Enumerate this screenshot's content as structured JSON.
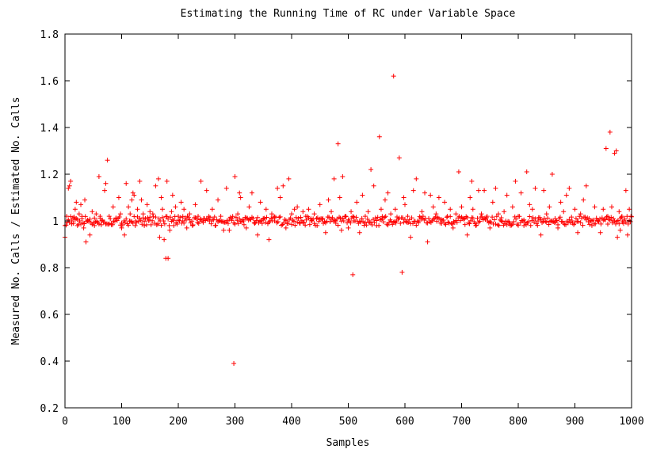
{
  "chart_data": {
    "type": "scatter",
    "title": "Estimating the Running Time of RC under Variable Space",
    "xlabel": "Samples",
    "ylabel": "Measured No. Calls / Estimated No. Calls",
    "xlim": [
      0,
      1000
    ],
    "ylim": [
      0.2,
      1.8
    ],
    "xticks": [
      "0",
      "100",
      "200",
      "300",
      "400",
      "500",
      "600",
      "700",
      "800",
      "900",
      "1000"
    ],
    "yticks": [
      "0.2",
      "0.4",
      "0.6",
      "0.8",
      "1",
      "1.2",
      "1.4",
      "1.6",
      "1.8"
    ],
    "grid": false,
    "marker": "plus",
    "series": [
      {
        "color": "#ff0000",
        "points": [
          [
            0,
            0.93
          ],
          [
            3,
            1.02
          ],
          [
            6,
            1.14
          ],
          [
            8,
            1.15
          ],
          [
            10,
            1.17
          ],
          [
            12,
            1.0
          ],
          [
            15,
            0.99
          ],
          [
            18,
            1.05
          ],
          [
            20,
            1.08
          ],
          [
            22,
            0.98
          ],
          [
            25,
            1.03
          ],
          [
            28,
            1.07
          ],
          [
            30,
            1.01
          ],
          [
            33,
            0.97
          ],
          [
            35,
            1.09
          ],
          [
            37,
            0.91
          ],
          [
            40,
            1.0
          ],
          [
            44,
            0.94
          ],
          [
            48,
            1.04
          ],
          [
            52,
            0.98
          ],
          [
            55,
            1.03
          ],
          [
            60,
            1.19
          ],
          [
            62,
            1.02
          ],
          [
            65,
            1.0
          ],
          [
            70,
            1.13
          ],
          [
            72,
            1.16
          ],
          [
            75,
            1.26
          ],
          [
            78,
            1.02
          ],
          [
            82,
            0.99
          ],
          [
            85,
            1.06
          ],
          [
            90,
            1.01
          ],
          [
            95,
            1.1
          ],
          [
            98,
            1.03
          ],
          [
            100,
            0.97
          ],
          [
            105,
            0.94
          ],
          [
            108,
            1.16
          ],
          [
            112,
            1.06
          ],
          [
            115,
            1.03
          ],
          [
            118,
            1.09
          ],
          [
            120,
            1.12
          ],
          [
            122,
            1.11
          ],
          [
            125,
            1.0
          ],
          [
            128,
            1.05
          ],
          [
            132,
            1.17
          ],
          [
            135,
            1.09
          ],
          [
            138,
            1.03
          ],
          [
            140,
            0.98
          ],
          [
            145,
            1.07
          ],
          [
            148,
            1.0
          ],
          [
            150,
            1.04
          ],
          [
            155,
            1.03
          ],
          [
            160,
            1.15
          ],
          [
            165,
            1.18
          ],
          [
            167,
            0.93
          ],
          [
            170,
            1.1
          ],
          [
            172,
            1.05
          ],
          [
            175,
            0.92
          ],
          [
            178,
            0.84
          ],
          [
            180,
            1.17
          ],
          [
            182,
            0.84
          ],
          [
            185,
            0.96
          ],
          [
            188,
            1.04
          ],
          [
            190,
            1.11
          ],
          [
            192,
            0.98
          ],
          [
            195,
            1.06
          ],
          [
            200,
            1.02
          ],
          [
            205,
            1.08
          ],
          [
            208,
            1.0
          ],
          [
            210,
            1.05
          ],
          [
            215,
            0.97
          ],
          [
            220,
            1.03
          ],
          [
            225,
            0.98
          ],
          [
            230,
            1.07
          ],
          [
            235,
            1.02
          ],
          [
            240,
            1.17
          ],
          [
            245,
            1.01
          ],
          [
            250,
            1.13
          ],
          [
            255,
            1.0
          ],
          [
            260,
            1.05
          ],
          [
            265,
            0.98
          ],
          [
            270,
            1.09
          ],
          [
            275,
            1.02
          ],
          [
            280,
            0.96
          ],
          [
            285,
            1.14
          ],
          [
            290,
            0.96
          ],
          [
            295,
            1.01
          ],
          [
            298,
            0.39
          ],
          [
            300,
            1.19
          ],
          [
            305,
            1.03
          ],
          [
            308,
            1.12
          ],
          [
            310,
            1.1
          ],
          [
            315,
            1.0
          ],
          [
            320,
            0.97
          ],
          [
            325,
            1.06
          ],
          [
            330,
            1.12
          ],
          [
            335,
            0.99
          ],
          [
            340,
            0.94
          ],
          [
            345,
            1.08
          ],
          [
            350,
            1.01
          ],
          [
            355,
            1.05
          ],
          [
            360,
            0.92
          ],
          [
            365,
            1.03
          ],
          [
            370,
            1.0
          ],
          [
            375,
            1.14
          ],
          [
            380,
            1.1
          ],
          [
            385,
            1.15
          ],
          [
            390,
            0.97
          ],
          [
            395,
            1.18
          ],
          [
            400,
            1.03
          ],
          [
            405,
            1.05
          ],
          [
            410,
            1.06
          ],
          [
            415,
            0.99
          ],
          [
            420,
            1.04
          ],
          [
            425,
            1.02
          ],
          [
            430,
            1.05
          ],
          [
            435,
            1.0
          ],
          [
            440,
            1.03
          ],
          [
            445,
            0.98
          ],
          [
            450,
            1.07
          ],
          [
            455,
            1.01
          ],
          [
            460,
            0.95
          ],
          [
            465,
            1.09
          ],
          [
            470,
            1.04
          ],
          [
            475,
            1.18
          ],
          [
            478,
            1.0
          ],
          [
            482,
            1.33
          ],
          [
            485,
            1.1
          ],
          [
            488,
            0.96
          ],
          [
            490,
            1.19
          ],
          [
            495,
            1.02
          ],
          [
            500,
            0.97
          ],
          [
            505,
            1.04
          ],
          [
            508,
            0.77
          ],
          [
            510,
            1.0
          ],
          [
            515,
            1.08
          ],
          [
            520,
            0.95
          ],
          [
            525,
            1.11
          ],
          [
            530,
            1.02
          ],
          [
            535,
            1.04
          ],
          [
            540,
            1.22
          ],
          [
            545,
            1.15
          ],
          [
            550,
            0.98
          ],
          [
            555,
            1.36
          ],
          [
            558,
            1.05
          ],
          [
            560,
            1.01
          ],
          [
            565,
            1.09
          ],
          [
            570,
            1.12
          ],
          [
            575,
            1.03
          ],
          [
            580,
            1.62
          ],
          [
            583,
            1.05
          ],
          [
            585,
            1.0
          ],
          [
            590,
            1.27
          ],
          [
            595,
            0.78
          ],
          [
            598,
            1.1
          ],
          [
            600,
            1.07
          ],
          [
            605,
            1.02
          ],
          [
            610,
            0.93
          ],
          [
            615,
            1.13
          ],
          [
            620,
            1.18
          ],
          [
            625,
            1.0
          ],
          [
            630,
            1.04
          ],
          [
            635,
            1.12
          ],
          [
            640,
            0.91
          ],
          [
            645,
            1.11
          ],
          [
            650,
            1.06
          ],
          [
            655,
            1.03
          ],
          [
            660,
            1.1
          ],
          [
            665,
            0.99
          ],
          [
            670,
            1.08
          ],
          [
            675,
            1.02
          ],
          [
            680,
            1.05
          ],
          [
            685,
            0.97
          ],
          [
            690,
            1.03
          ],
          [
            695,
            1.21
          ],
          [
            700,
            1.06
          ],
          [
            705,
            1.01
          ],
          [
            710,
            0.94
          ],
          [
            715,
            1.1
          ],
          [
            718,
            1.17
          ],
          [
            720,
            1.05
          ],
          [
            725,
            0.98
          ],
          [
            730,
            1.13
          ],
          [
            735,
            1.03
          ],
          [
            740,
            1.13
          ],
          [
            745,
            1.02
          ],
          [
            750,
            0.97
          ],
          [
            755,
            1.08
          ],
          [
            760,
            1.14
          ],
          [
            765,
            1.03
          ],
          [
            770,
            1.0
          ],
          [
            775,
            1.04
          ],
          [
            780,
            1.11
          ],
          [
            785,
            0.99
          ],
          [
            790,
            1.06
          ],
          [
            795,
            1.17
          ],
          [
            800,
            1.02
          ],
          [
            805,
            1.12
          ],
          [
            810,
            0.98
          ],
          [
            815,
            1.21
          ],
          [
            820,
            1.07
          ],
          [
            825,
            1.05
          ],
          [
            830,
            1.14
          ],
          [
            835,
            1.0
          ],
          [
            840,
            0.94
          ],
          [
            845,
            1.13
          ],
          [
            850,
            1.03
          ],
          [
            855,
            1.06
          ],
          [
            860,
            1.2
          ],
          [
            865,
            1.01
          ],
          [
            870,
            0.97
          ],
          [
            875,
            1.08
          ],
          [
            880,
            1.04
          ],
          [
            885,
            1.11
          ],
          [
            890,
            1.14
          ],
          [
            895,
            1.0
          ],
          [
            900,
            1.05
          ],
          [
            905,
            0.95
          ],
          [
            910,
            1.03
          ],
          [
            915,
            1.09
          ],
          [
            920,
            1.15
          ],
          [
            925,
            1.01
          ],
          [
            930,
            0.98
          ],
          [
            935,
            1.06
          ],
          [
            940,
            1.0
          ],
          [
            945,
            0.95
          ],
          [
            950,
            1.05
          ],
          [
            955,
            1.31
          ],
          [
            958,
            1.02
          ],
          [
            962,
            1.38
          ],
          [
            965,
            1.06
          ],
          [
            968,
            1.0
          ],
          [
            970,
            1.29
          ],
          [
            973,
            1.3
          ],
          [
            975,
            0.93
          ],
          [
            978,
            1.04
          ],
          [
            980,
            0.96
          ],
          [
            983,
            1.02
          ],
          [
            986,
            1.0
          ],
          [
            990,
            1.13
          ],
          [
            993,
            0.94
          ],
          [
            996,
            1.05
          ],
          [
            999,
            1.02
          ]
        ]
      }
    ]
  }
}
